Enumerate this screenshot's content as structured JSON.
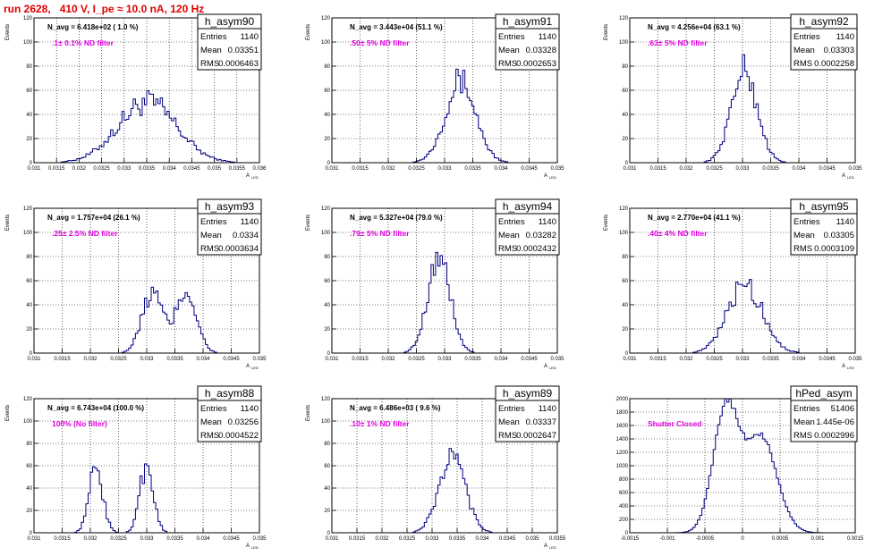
{
  "header": {
    "title": "run 2628,   410 V, I_pe ≈ 10.0 nA, 120 Hz"
  },
  "colors": {
    "title": "#e00000",
    "histogram_line": "#000080",
    "annotation": "#e000e0",
    "grid": "#000000"
  },
  "chart_data": [
    {
      "type": "histogram",
      "name": "h_asym90",
      "ylabel": "Events",
      "xlabel": "A",
      "xlabel_sub": "LED",
      "xlim": [
        0.031,
        0.036
      ],
      "ylim": [
        0,
        120
      ],
      "xticks": [
        "0.031",
        "0.0315",
        "0.032",
        "0.0325",
        "0.033",
        "0.0335",
        "0.034",
        "0.0345",
        "0.035",
        "0.0355",
        "0.036"
      ],
      "yticks": [
        "0",
        "20",
        "40",
        "60",
        "80",
        "100",
        "120"
      ],
      "navg": "N_avg = 6.418e+02 ( 1.0 %)",
      "note": ".1± 0.1% ND filter",
      "stats": {
        "Entries": "1140",
        "Mean": "0.03351",
        "RMS": "0.0006463"
      },
      "distribution": {
        "peaks": [
          [
            0.03351,
            50,
            0.00065
          ]
        ],
        "noise": 0.22
      },
      "grid": true
    },
    {
      "type": "histogram",
      "name": "h_asym91",
      "ylabel": "Events",
      "xlabel": "A",
      "xlabel_sub": "LED",
      "xlim": [
        0.031,
        0.035
      ],
      "ylim": [
        0,
        120
      ],
      "xticks": [
        "0.031",
        "0.0315",
        "0.032",
        "0.0325",
        "0.033",
        "0.0335",
        "0.034",
        "0.0345",
        "0.035"
      ],
      "yticks": [
        "0",
        "20",
        "40",
        "60",
        "80",
        "100",
        "120"
      ],
      "navg": "N_avg = 3.443e+04 (51.1 %)",
      "note": ".50± 5% ND filter",
      "stats": {
        "Entries": "1140",
        "Mean": "0.03328",
        "RMS": "0.0002653"
      },
      "distribution": {
        "peaks": [
          [
            0.03328,
            68,
            0.00027
          ]
        ],
        "noise": 0.18
      },
      "grid": true
    },
    {
      "type": "histogram",
      "name": "h_asym92",
      "ylabel": "Events",
      "xlabel": "A",
      "xlabel_sub": "LED",
      "xlim": [
        0.031,
        0.035
      ],
      "ylim": [
        0,
        120
      ],
      "xticks": [
        "0.031",
        "0.0315",
        "0.032",
        "0.0325",
        "0.033",
        "0.0335",
        "0.034",
        "0.0345",
        "0.035"
      ],
      "yticks": [
        "0",
        "20",
        "40",
        "60",
        "80",
        "100",
        "120"
      ],
      "navg": "N_avg = 4.256e+04 (63.1 %)",
      "note": ".63± 5% ND filter",
      "stats": {
        "Entries": "1140",
        "Mean": "0.03303",
        "RMS": "0.0002258"
      },
      "distribution": {
        "peaks": [
          [
            0.03303,
            76,
            0.00023
          ]
        ],
        "noise": 0.18
      },
      "grid": true
    },
    {
      "type": "histogram",
      "name": "h_asym93",
      "ylabel": "Events",
      "xlabel": "A",
      "xlabel_sub": "LED",
      "xlim": [
        0.031,
        0.035
      ],
      "ylim": [
        0,
        120
      ],
      "xticks": [
        "0.031",
        "0.0315",
        "0.032",
        "0.0325",
        "0.033",
        "0.0335",
        "0.034",
        "0.0345",
        "0.035"
      ],
      "yticks": [
        "0",
        "20",
        "40",
        "60",
        "80",
        "100",
        "120"
      ],
      "navg": "N_avg = 1.757e+04 (26.1 %)",
      "note": ".25± 2.5% ND filter",
      "stats": {
        "Entries": "1140",
        "Mean": "0.0334",
        "RMS": "0.0003634"
      },
      "distribution": {
        "peaks": [
          [
            0.0331,
            50,
            0.00018
          ],
          [
            0.0337,
            52,
            0.00018
          ]
        ],
        "noise": 0.2
      },
      "grid": true
    },
    {
      "type": "histogram",
      "name": "h_asym94",
      "ylabel": "Events",
      "xlabel": "A",
      "xlabel_sub": "LED",
      "xlim": [
        0.031,
        0.035
      ],
      "ylim": [
        0,
        120
      ],
      "xticks": [
        "0.031",
        "0.0315",
        "0.032",
        "0.0325",
        "0.033",
        "0.0335",
        "0.034",
        "0.0345",
        "0.035"
      ],
      "yticks": [
        "0",
        "20",
        "40",
        "60",
        "80",
        "100",
        "120"
      ],
      "navg": "N_avg = 5.327e+04 (79.0 %)",
      "note": ".79± 5% ND filter",
      "stats": {
        "Entries": "1140",
        "Mean": "0.03282",
        "RMS": "0.0002432"
      },
      "distribution": {
        "peaks": [
          [
            0.0329,
            80,
            0.0002
          ]
        ],
        "noise": 0.15
      },
      "grid": true
    },
    {
      "type": "histogram",
      "name": "h_asym95",
      "ylabel": "Events",
      "xlabel": "A",
      "xlabel_sub": "LED",
      "xlim": [
        0.031,
        0.035
      ],
      "ylim": [
        0,
        120
      ],
      "xticks": [
        "0.031",
        "0.0315",
        "0.032",
        "0.0325",
        "0.033",
        "0.0335",
        "0.034",
        "0.0345",
        "0.035"
      ],
      "yticks": [
        "0",
        "20",
        "40",
        "60",
        "80",
        "100",
        "120"
      ],
      "navg": "N_avg = 2.770e+04 (41.1 %)",
      "note": ".40± 4% ND filter",
      "stats": {
        "Entries": "1140",
        "Mean": "0.03305",
        "RMS": "0.0003109"
      },
      "distribution": {
        "peaks": [
          [
            0.03305,
            57,
            0.00031
          ]
        ],
        "noise": 0.2
      },
      "grid": true
    },
    {
      "type": "histogram",
      "name": "h_asym88",
      "ylabel": "Events",
      "xlabel": "A",
      "xlabel_sub": "LED",
      "xlim": [
        0.031,
        0.035
      ],
      "ylim": [
        0,
        120
      ],
      "xticks": [
        "0.031",
        "0.0315",
        "0.032",
        "0.0325",
        "0.033",
        "0.0335",
        "0.034",
        "0.0345",
        "0.035"
      ],
      "yticks": [
        "0",
        "20",
        "40",
        "60",
        "80",
        "100",
        "120"
      ],
      "navg": "N_avg = 6.743e+04 (100.0 %)",
      "note": "100% (No filter)",
      "stats": {
        "Entries": "1140",
        "Mean": "0.03256",
        "RMS": "0.0004522"
      },
      "distribution": {
        "peaks": [
          [
            0.0321,
            60,
            0.00012
          ],
          [
            0.033,
            62,
            0.00012
          ]
        ],
        "noise": 0.2
      },
      "grid": true
    },
    {
      "type": "histogram",
      "name": "h_asym89",
      "ylabel": "Events",
      "xlabel": "A",
      "xlabel_sub": "LED",
      "xlim": [
        0.031,
        0.0355
      ],
      "ylim": [
        0,
        120
      ],
      "xticks": [
        "0.031",
        "0.0315",
        "0.032",
        "0.0325",
        "0.033",
        "0.0335",
        "0.034",
        "0.0345",
        "0.035",
        "0.0355"
      ],
      "yticks": [
        "0",
        "20",
        "40",
        "60",
        "80",
        "100",
        "120"
      ],
      "navg": "N_avg = 6.486e+03 ( 9.6 %)",
      "note": ".10± 1% ND filter",
      "stats": {
        "Entries": "1140",
        "Mean": "0.03337",
        "RMS": "0.0002647"
      },
      "distribution": {
        "peaks": [
          [
            0.0334,
            68,
            0.00026
          ]
        ],
        "noise": 0.15
      },
      "grid": true
    },
    {
      "type": "histogram",
      "name": "hPed_asym",
      "ylabel": "",
      "xlabel": "",
      "xlabel_sub": "",
      "xlim": [
        -0.0015,
        0.0015
      ],
      "ylim": [
        0,
        2100
      ],
      "xticks": [
        "-0.0015",
        "-0.001",
        "-0.0005",
        "0",
        "0.0005",
        "0.001",
        "0.0015"
      ],
      "yticks": [
        "0",
        "200",
        "400",
        "600",
        "800",
        "1000",
        "1200",
        "1400",
        "1600",
        "1800",
        "2000"
      ],
      "navg": "",
      "note": "Shutter Closed",
      "stats": {
        "Entries": "51406",
        "Mean": "1.445e-06",
        "RMS": "0.0002996"
      },
      "distribution": {
        "peaks": [
          [
            -0.00022,
            1950,
            0.00017
          ],
          [
            0.00025,
            1480,
            0.00021
          ]
        ],
        "noise": 0.03
      },
      "grid": true
    }
  ]
}
